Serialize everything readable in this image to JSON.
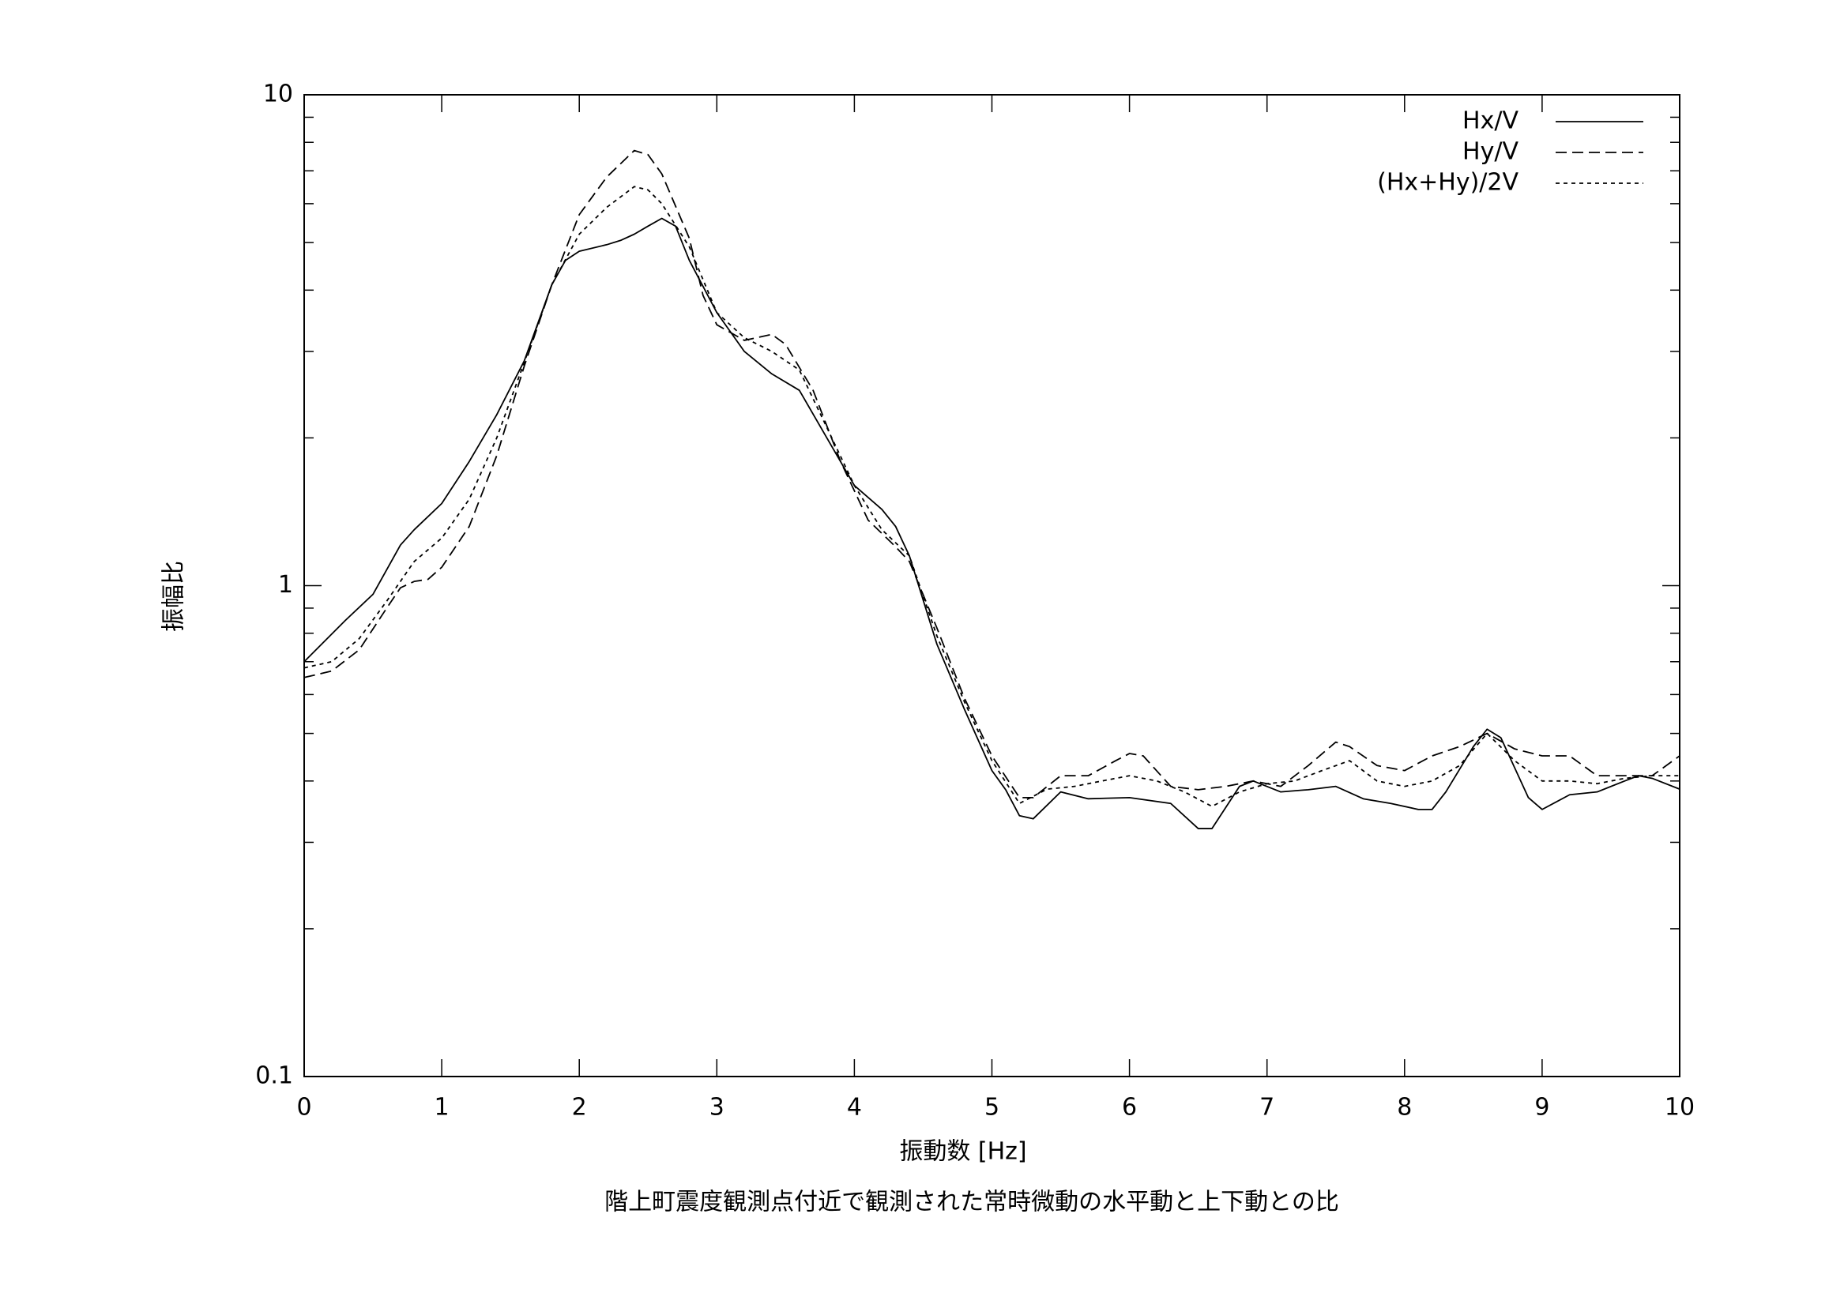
{
  "chart_data": {
    "type": "line",
    "xlabel": "振動数 [Hz]",
    "ylabel": "振幅比",
    "caption": "階上町震度観測点付近で観測された常時微動の水平動と上下動との比",
    "xlim": [
      0,
      10
    ],
    "xticks": [
      0,
      1,
      2,
      3,
      4,
      5,
      6,
      7,
      8,
      9,
      10
    ],
    "ylim": [
      0.1,
      10
    ],
    "ylog": true,
    "yticks": [
      0.1,
      1,
      10
    ],
    "yminorticks": [
      0.2,
      0.3,
      0.4,
      0.5,
      0.6,
      0.7,
      0.8,
      0.9,
      2,
      3,
      4,
      5,
      6,
      7,
      8,
      9
    ],
    "legend": "top-right",
    "series": [
      {
        "name": "Hx/V",
        "color": "#000000",
        "dash": "none",
        "x": [
          0,
          0.3,
          0.5,
          0.7,
          0.8,
          1.0,
          1.2,
          1.4,
          1.6,
          1.8,
          1.9,
          2.0,
          2.2,
          2.3,
          2.4,
          2.5,
          2.6,
          2.7,
          2.8,
          3.0,
          3.2,
          3.4,
          3.6,
          3.8,
          4.0,
          4.2,
          4.3,
          4.4,
          4.6,
          4.8,
          5.0,
          5.1,
          5.2,
          5.3,
          5.5,
          5.7,
          6.0,
          6.3,
          6.5,
          6.6,
          6.8,
          6.9,
          7.1,
          7.3,
          7.5,
          7.7,
          7.9,
          8.1,
          8.2,
          8.3,
          8.5,
          8.6,
          8.7,
          8.9,
          9.0,
          9.2,
          9.4,
          9.6,
          9.7,
          9.8,
          10
        ],
        "values": [
          0.7,
          0.85,
          0.96,
          1.21,
          1.3,
          1.47,
          1.79,
          2.23,
          2.87,
          4.1,
          4.6,
          4.8,
          4.95,
          5.05,
          5.2,
          5.4,
          5.6,
          5.4,
          4.6,
          3.6,
          3.0,
          2.7,
          2.5,
          2.0,
          1.6,
          1.43,
          1.32,
          1.15,
          0.76,
          0.56,
          0.42,
          0.384,
          0.34,
          0.335,
          0.38,
          0.368,
          0.37,
          0.36,
          0.32,
          0.32,
          0.39,
          0.4,
          0.38,
          0.384,
          0.39,
          0.368,
          0.36,
          0.35,
          0.35,
          0.38,
          0.47,
          0.51,
          0.49,
          0.37,
          0.35,
          0.375,
          0.38,
          0.4,
          0.41,
          0.405,
          0.385
        ]
      },
      {
        "name": "Hy/V",
        "color": "#000000",
        "dash": "14 7",
        "x": [
          0,
          0.2,
          0.4,
          0.6,
          0.7,
          0.8,
          0.9,
          1.0,
          1.2,
          1.4,
          1.6,
          1.8,
          2.0,
          2.2,
          2.4,
          2.5,
          2.6,
          2.8,
          2.9,
          3.0,
          3.2,
          3.4,
          3.5,
          3.7,
          3.9,
          4.1,
          4.3,
          4.4,
          4.6,
          4.8,
          5.0,
          5.2,
          5.3,
          5.5,
          5.7,
          5.9,
          6.0,
          6.1,
          6.3,
          6.5,
          6.7,
          6.9,
          7.1,
          7.3,
          7.5,
          7.6,
          7.8,
          8.0,
          8.2,
          8.4,
          8.6,
          8.8,
          9.0,
          9.2,
          9.4,
          9.6,
          9.8,
          10
        ],
        "values": [
          0.65,
          0.67,
          0.74,
          0.9,
          0.99,
          1.02,
          1.03,
          1.09,
          1.32,
          1.84,
          2.8,
          4.1,
          5.7,
          6.8,
          7.7,
          7.55,
          6.9,
          5.1,
          3.9,
          3.4,
          3.16,
          3.25,
          3.1,
          2.5,
          1.79,
          1.36,
          1.2,
          1.12,
          0.82,
          0.59,
          0.45,
          0.37,
          0.37,
          0.41,
          0.41,
          0.44,
          0.455,
          0.45,
          0.39,
          0.384,
          0.39,
          0.4,
          0.39,
          0.43,
          0.48,
          0.47,
          0.43,
          0.42,
          0.45,
          0.47,
          0.5,
          0.465,
          0.45,
          0.45,
          0.41,
          0.41,
          0.41,
          0.45
        ]
      },
      {
        "name": "(Hx+Hy)/2V",
        "color": "#000000",
        "dash": "5 5",
        "x": [
          0,
          0.2,
          0.4,
          0.6,
          0.8,
          1.0,
          1.2,
          1.4,
          1.6,
          1.8,
          2.0,
          2.2,
          2.4,
          2.5,
          2.6,
          2.8,
          3.0,
          3.2,
          3.4,
          3.6,
          3.8,
          4.0,
          4.2,
          4.4,
          4.6,
          4.8,
          5.0,
          5.2,
          5.4,
          5.6,
          5.8,
          6.0,
          6.2,
          6.4,
          6.6,
          6.8,
          7.0,
          7.2,
          7.4,
          7.6,
          7.8,
          8.0,
          8.2,
          8.4,
          8.6,
          8.8,
          9.0,
          9.2,
          9.4,
          9.6,
          9.8,
          10
        ],
        "values": [
          0.68,
          0.7,
          0.78,
          0.93,
          1.12,
          1.25,
          1.5,
          2.0,
          2.85,
          4.1,
          5.2,
          5.9,
          6.5,
          6.4,
          6.0,
          4.9,
          3.6,
          3.2,
          3.0,
          2.75,
          2.1,
          1.6,
          1.3,
          1.15,
          0.79,
          0.58,
          0.44,
          0.36,
          0.385,
          0.39,
          0.4,
          0.41,
          0.4,
          0.38,
          0.355,
          0.38,
          0.395,
          0.4,
          0.42,
          0.44,
          0.4,
          0.39,
          0.4,
          0.43,
          0.5,
          0.44,
          0.4,
          0.4,
          0.395,
          0.405,
          0.41,
          0.41
        ]
      }
    ]
  }
}
